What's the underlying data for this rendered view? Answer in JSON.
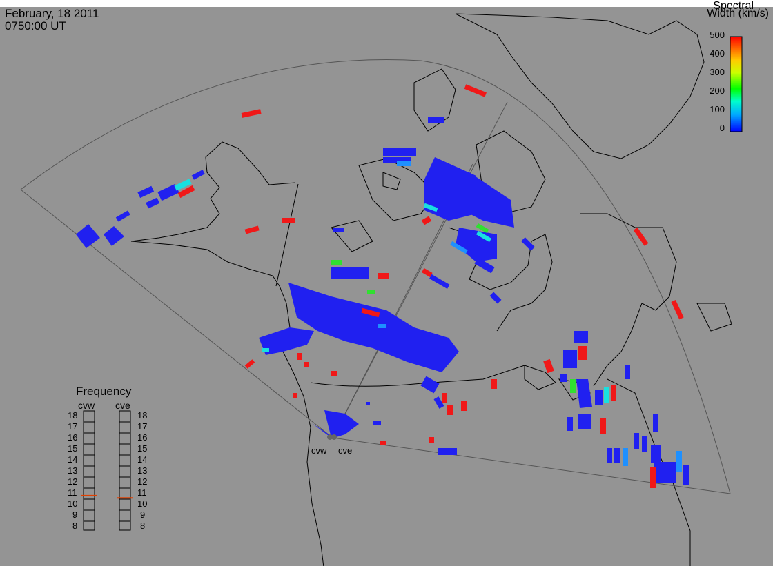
{
  "header": {
    "date": "February, 18 2011",
    "time": "0750:00 UT"
  },
  "colorbar": {
    "title_line1": "Spectral",
    "title_line2": "Width (km/s)",
    "ticks": [
      "500",
      "400",
      "300",
      "200",
      "100",
      "0"
    ]
  },
  "frequency": {
    "title": "Frequency",
    "radar_left": "cvw",
    "radar_right": "cve",
    "ticks": [
      "18",
      "17",
      "16",
      "15",
      "14",
      "13",
      "12",
      "11",
      "10",
      "9",
      "8"
    ],
    "value_cvw": 10.9,
    "value_cve": 10.7
  },
  "sites": {
    "west": "cvw",
    "east": "cve"
  },
  "colors": {
    "background": "#949494",
    "coast": "#000000",
    "blue": "#2020f0",
    "red": "#f01818",
    "cyan": "#18e0e0",
    "green": "#30e030",
    "sky": "#1e90ff",
    "frequency_marker": "#e04000"
  }
}
